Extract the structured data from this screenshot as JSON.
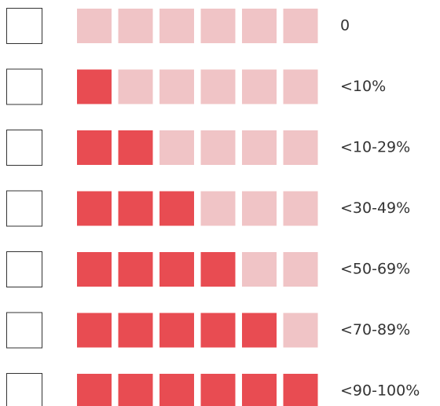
{
  "legend": {
    "rows": [
      {
        "label": "0",
        "filled": 0
      },
      {
        "label": "<10%",
        "filled": 1
      },
      {
        "label": "<10-29%",
        "filled": 2
      },
      {
        "label": "<30-49%",
        "filled": 3
      },
      {
        "label": "<50-69%",
        "filled": 4
      },
      {
        "label": "<70-89%",
        "filled": 5
      },
      {
        "label": "<90-100%",
        "filled": 6
      }
    ],
    "total": 6,
    "filled_color": "#e84c52",
    "empty_color": "#f0c4c6"
  }
}
